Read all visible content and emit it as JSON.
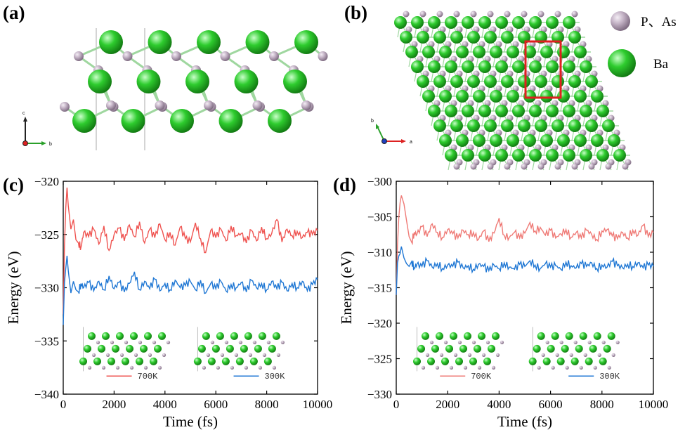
{
  "panels": {
    "a": {
      "label": "(a)",
      "axis_c": "c",
      "axis_b": "b"
    },
    "b": {
      "label": "(b)",
      "axis_b": "b",
      "axis_a": "a"
    },
    "c": {
      "label": "(c)"
    },
    "d": {
      "label": "(d)"
    }
  },
  "legend": {
    "p_as": {
      "label": "P、As",
      "color": "#c4b3c6"
    },
    "ba": {
      "label": "Ba",
      "color": "#2ecc2e"
    }
  },
  "colors": {
    "hot": "#ef5350",
    "cold": "#1f77d4",
    "hot_d": "#ef7a76"
  },
  "chart_data": [
    {
      "type": "line",
      "panel": "c",
      "xlabel": "Time (fs)",
      "ylabel": "Energy (eV)",
      "xlim": [
        0,
        10000
      ],
      "ylim": [
        -340,
        -320
      ],
      "xticks": [
        0,
        2000,
        4000,
        6000,
        8000,
        10000
      ],
      "yticks": [
        -340,
        -335,
        -330,
        -325,
        -320
      ],
      "series": [
        {
          "name": "700K",
          "color": "#ef5350",
          "x": [
            0,
            50,
            100,
            150,
            200,
            300,
            400,
            500,
            600,
            700,
            800,
            1000,
            1200,
            1400,
            1600,
            1800,
            2000,
            2200,
            2400,
            2600,
            2800,
            3000,
            3200,
            3400,
            3600,
            3800,
            4000,
            4200,
            4400,
            4600,
            4800,
            5000,
            5200,
            5400,
            5600,
            5800,
            6000,
            6200,
            6400,
            6600,
            6800,
            7000,
            7200,
            7400,
            7600,
            7800,
            8000,
            8200,
            8400,
            8600,
            8800,
            9000,
            9200,
            9400,
            9600,
            9800,
            10000
          ],
          "y": [
            -332.5,
            -326.0,
            -322.5,
            -320.6,
            -322.3,
            -324.5,
            -323.6,
            -325.5,
            -325.8,
            -326.2,
            -324.8,
            -325.2,
            -324.5,
            -325.9,
            -324.2,
            -326.5,
            -325.0,
            -324.4,
            -325.6,
            -324.1,
            -325.2,
            -323.8,
            -325.8,
            -324.5,
            -325.3,
            -324.0,
            -325.5,
            -324.8,
            -326.0,
            -324.3,
            -325.4,
            -325.7,
            -323.9,
            -325.4,
            -326.7,
            -324.6,
            -325.3,
            -324.5,
            -325.6,
            -324.2,
            -325.1,
            -324.9,
            -325.8,
            -324.6,
            -325.6,
            -324.3,
            -325.4,
            -324.9,
            -323.6,
            -325.7,
            -324.5,
            -325.1,
            -324.7,
            -325.3,
            -324.8,
            -325.0,
            -324.6
          ]
        },
        {
          "name": "300K",
          "color": "#1f77d4",
          "x": [
            0,
            50,
            100,
            150,
            200,
            300,
            400,
            500,
            600,
            700,
            800,
            1000,
            1200,
            1400,
            1600,
            1800,
            2000,
            2200,
            2400,
            2600,
            2800,
            3000,
            3200,
            3400,
            3600,
            3800,
            4000,
            4200,
            4400,
            4600,
            4800,
            5000,
            5200,
            5400,
            5600,
            5800,
            6000,
            6200,
            6400,
            6600,
            6800,
            7000,
            7200,
            7400,
            7600,
            7800,
            8000,
            8200,
            8400,
            8600,
            8800,
            9000,
            9200,
            9400,
            9600,
            9800,
            10000
          ],
          "y": [
            -333.5,
            -329.5,
            -328.2,
            -327.0,
            -328.4,
            -330.5,
            -329.4,
            -330.2,
            -330.4,
            -329.6,
            -330.0,
            -329.5,
            -330.3,
            -329.4,
            -330.2,
            -328.9,
            -330.1,
            -329.5,
            -330.4,
            -329.6,
            -328.5,
            -330.2,
            -329.4,
            -330.1,
            -329.2,
            -330.3,
            -329.6,
            -330.2,
            -329.3,
            -330.0,
            -329.8,
            -329.4,
            -330.2,
            -329.3,
            -330.5,
            -329.6,
            -330.1,
            -329.4,
            -330.3,
            -329.7,
            -330.0,
            -329.5,
            -330.4,
            -329.3,
            -330.0,
            -329.6,
            -330.2,
            -329.4,
            -330.1,
            -329.5,
            -330.3,
            -329.6,
            -330.0,
            -329.4,
            -330.3,
            -329.7,
            -329.2
          ]
        }
      ]
    },
    {
      "type": "line",
      "panel": "d",
      "xlabel": "Time (fs)",
      "ylabel": "Energy (eV)",
      "xlim": [
        0,
        10000
      ],
      "ylim": [
        -330,
        -300
      ],
      "xticks": [
        0,
        2000,
        4000,
        6000,
        8000,
        10000
      ],
      "yticks": [
        -330,
        -325,
        -320,
        -315,
        -310,
        -305,
        -300
      ],
      "series": [
        {
          "name": "700K",
          "color": "#ef7a76",
          "x": [
            0,
            50,
            100,
            150,
            200,
            300,
            400,
            500,
            600,
            700,
            800,
            1000,
            1200,
            1400,
            1600,
            1800,
            2000,
            2200,
            2400,
            2600,
            2800,
            3000,
            3200,
            3400,
            3600,
            3800,
            4000,
            4200,
            4400,
            4600,
            4800,
            5000,
            5200,
            5400,
            5600,
            5800,
            6000,
            6200,
            6400,
            6600,
            6800,
            7000,
            7200,
            7400,
            7600,
            7800,
            8000,
            8200,
            8400,
            8600,
            8800,
            9000,
            9200,
            9400,
            9600,
            9800,
            10000
          ],
          "y": [
            -316.0,
            -309.0,
            -305.0,
            -303.0,
            -302.0,
            -303.2,
            -305.5,
            -307.8,
            -308.6,
            -307.2,
            -307.5,
            -306.4,
            -307.8,
            -306.0,
            -307.2,
            -307.9,
            -306.8,
            -307.4,
            -308.0,
            -306.9,
            -307.5,
            -307.2,
            -308.2,
            -307.0,
            -308.5,
            -307.3,
            -305.2,
            -307.6,
            -307.9,
            -307.2,
            -308.0,
            -307.3,
            -305.8,
            -307.0,
            -306.5,
            -307.6,
            -306.9,
            -308.0,
            -307.4,
            -306.8,
            -307.9,
            -307.2,
            -308.0,
            -306.9,
            -307.5,
            -308.2,
            -307.0,
            -306.8,
            -307.7,
            -308.1,
            -307.2,
            -308.0,
            -306.9,
            -307.6,
            -306.2,
            -307.8,
            -307.2
          ]
        },
        {
          "name": "300K",
          "color": "#1f77d4",
          "x": [
            0,
            50,
            100,
            150,
            200,
            300,
            400,
            500,
            600,
            700,
            800,
            1000,
            1200,
            1400,
            1600,
            1800,
            2000,
            2200,
            2400,
            2600,
            2800,
            3000,
            3200,
            3400,
            3600,
            3800,
            4000,
            4200,
            4400,
            4600,
            4800,
            5000,
            5200,
            5400,
            5600,
            5800,
            6000,
            6200,
            6400,
            6600,
            6800,
            7000,
            7200,
            7400,
            7600,
            7800,
            8000,
            8200,
            8400,
            8600,
            8800,
            9000,
            9200,
            9400,
            9600,
            9800,
            10000
          ],
          "y": [
            -316.0,
            -311.5,
            -310.5,
            -310.2,
            -309.2,
            -310.8,
            -311.6,
            -312.0,
            -311.3,
            -312.2,
            -311.7,
            -312.0,
            -311.2,
            -312.1,
            -311.6,
            -312.3,
            -311.8,
            -312.0,
            -311.4,
            -312.2,
            -311.9,
            -312.4,
            -311.7,
            -312.0,
            -312.6,
            -311.8,
            -312.3,
            -311.5,
            -312.1,
            -312.4,
            -311.7,
            -312.0,
            -311.2,
            -311.8,
            -312.3,
            -311.6,
            -312.1,
            -311.9,
            -312.4,
            -311.4,
            -311.9,
            -312.2,
            -311.6,
            -312.0,
            -311.5,
            -312.3,
            -311.8,
            -312.1,
            -311.3,
            -311.9,
            -312.2,
            -311.7,
            -312.0,
            -311.5,
            -312.2,
            -311.8,
            -312.0
          ]
        }
      ]
    }
  ]
}
